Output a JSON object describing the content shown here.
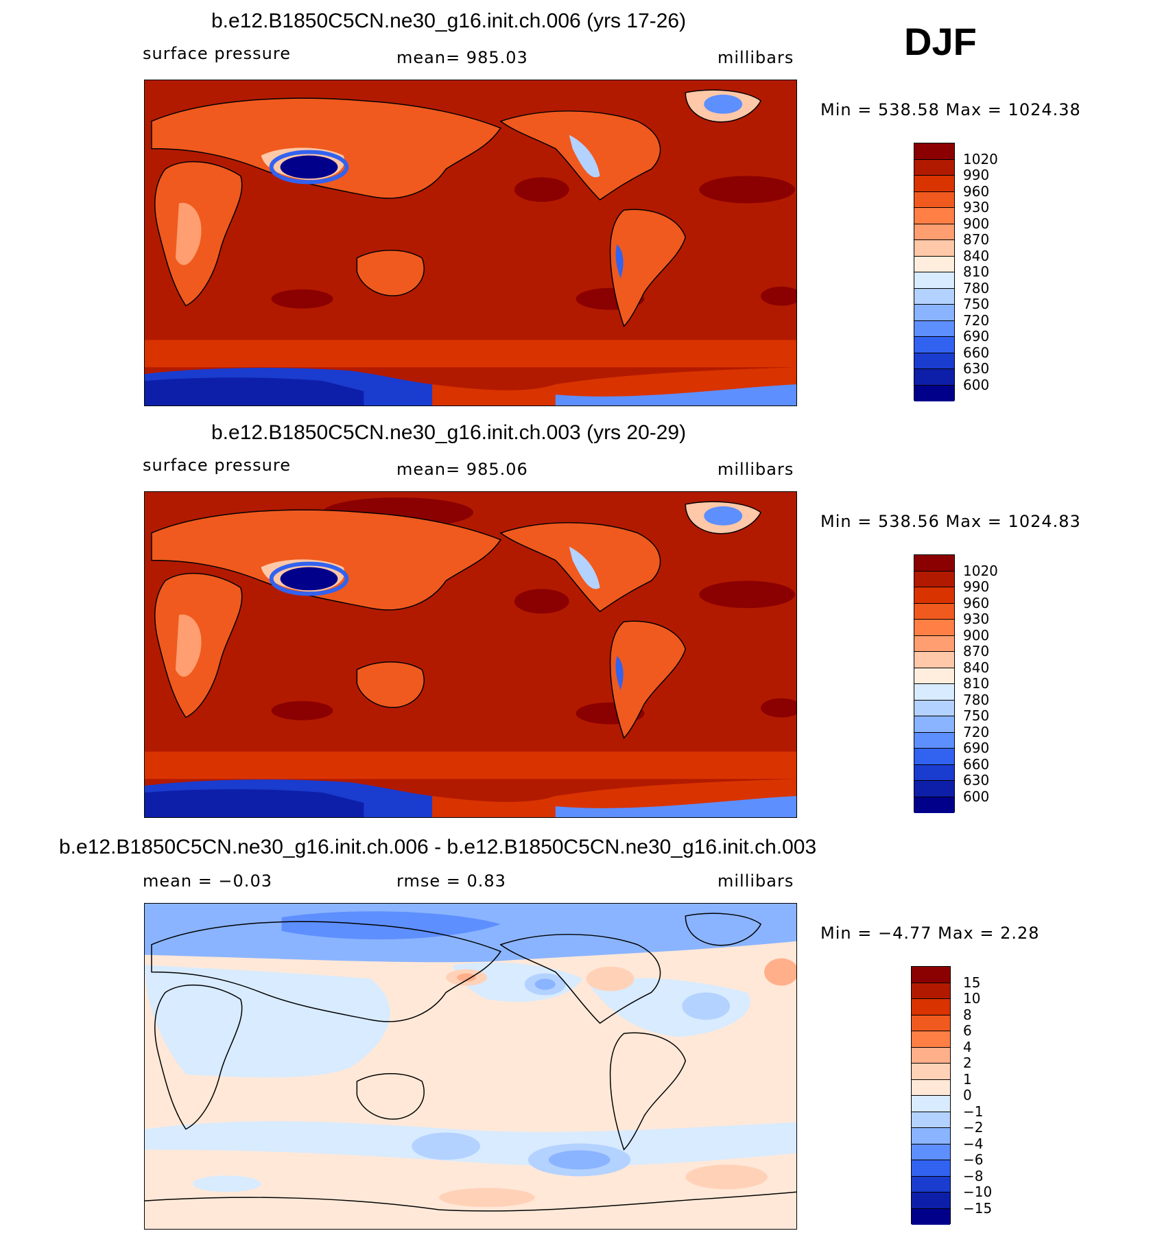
{
  "season": "DJF",
  "panels": [
    {
      "title": "b.e12.B1850C5CN.ne30_g16.init.ch.006 (yrs 17-26)",
      "left_label": "surface pressure",
      "center_label": "mean= 985.03",
      "units": "millibars",
      "minmax": "Min = 538.58 Max = 1024.38",
      "colorbar": {
        "labels": [
          "1020",
          "990",
          "960",
          "930",
          "900",
          "870",
          "840",
          "810",
          "780",
          "750",
          "720",
          "690",
          "660",
          "630",
          "600"
        ],
        "colors": [
          "#8b0000",
          "#b21a00",
          "#d93300",
          "#f05a1e",
          "#ff7f45",
          "#ff9e70",
          "#ffc8a8",
          "#ffeedd",
          "#d8ebff",
          "#b4d2ff",
          "#8ab4ff",
          "#5e8fff",
          "#3262f0",
          "#1a3ccf",
          "#0d1fa8",
          "#00008b"
        ]
      }
    },
    {
      "title": "b.e12.B1850C5CN.ne30_g16.init.ch.003 (yrs 20-29)",
      "left_label": "surface pressure",
      "center_label": "mean= 985.06",
      "units": "millibars",
      "minmax": "Min = 538.56 Max = 1024.83",
      "colorbar": {
        "labels": [
          "1020",
          "990",
          "960",
          "930",
          "900",
          "870",
          "840",
          "810",
          "780",
          "750",
          "720",
          "690",
          "660",
          "630",
          "600"
        ],
        "colors": [
          "#8b0000",
          "#b21a00",
          "#d93300",
          "#f05a1e",
          "#ff7f45",
          "#ff9e70",
          "#ffc8a8",
          "#ffeedd",
          "#d8ebff",
          "#b4d2ff",
          "#8ab4ff",
          "#5e8fff",
          "#3262f0",
          "#1a3ccf",
          "#0d1fa8",
          "#00008b"
        ]
      }
    },
    {
      "title": "b.e12.B1850C5CN.ne30_g16.init.ch.006 - b.e12.B1850C5CN.ne30_g16.init.ch.003",
      "left_label": "mean = −0.03",
      "center_label": "rmse = 0.83",
      "units": "millibars",
      "minmax": "Min = −4.77 Max = 2.28",
      "colorbar": {
        "labels": [
          "15",
          "10",
          "8",
          "6",
          "4",
          "2",
          "1",
          "0",
          "−1",
          "−2",
          "−4",
          "−6",
          "−8",
          "−10",
          "−15"
        ],
        "colors": [
          "#8b0000",
          "#b21a00",
          "#d93300",
          "#f05a1e",
          "#ff7f45",
          "#ffb08a",
          "#ffd2b8",
          "#ffe8d8",
          "#d8ebff",
          "#b4d2ff",
          "#8ab4ff",
          "#5e8fff",
          "#3262f0",
          "#1a3ccf",
          "#0d1fa8",
          "#00008b"
        ]
      }
    }
  ]
}
